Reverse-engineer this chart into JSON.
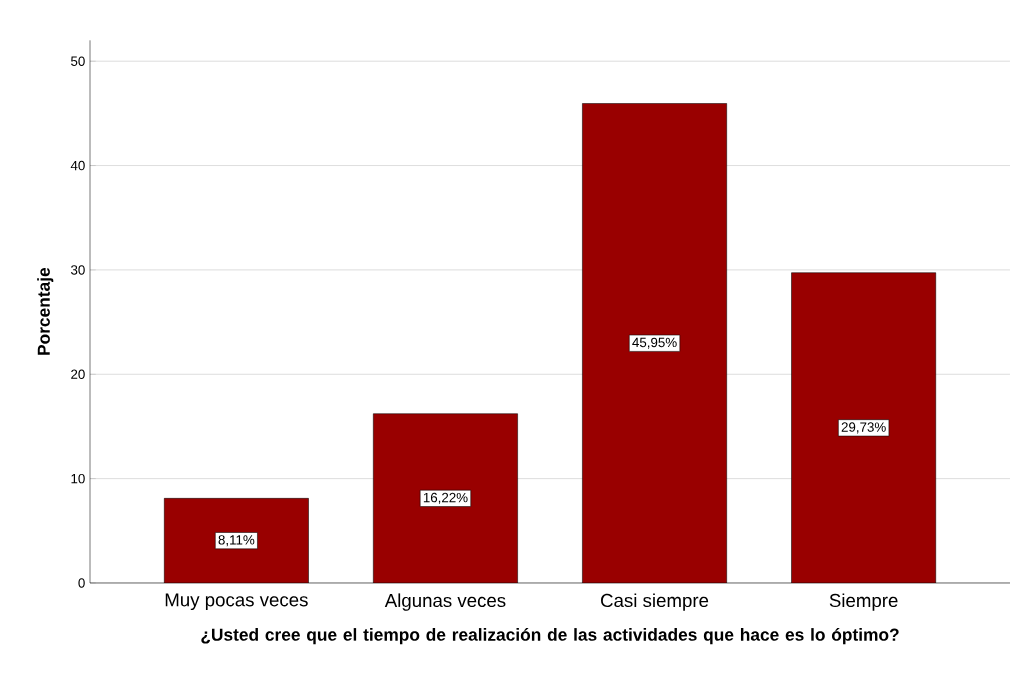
{
  "chart_data": {
    "type": "bar",
    "xlabel": "¿Usted cree que el tiempo de realización de las actividades que hace es lo óptimo?",
    "ylabel": "Porcentaje",
    "categories": [
      "Muy pocas veces",
      "Algunas veces",
      "Casi siempre",
      "Siempre"
    ],
    "values": [
      8.11,
      16.22,
      45.95,
      29.73
    ],
    "value_labels": [
      "8,11%",
      "16,22%",
      "45,95%",
      "29,73%"
    ],
    "color": "#990000",
    "ylim": [
      0,
      52
    ],
    "yticks": [
      0,
      10,
      20,
      30,
      40,
      50
    ],
    "grid": "y"
  }
}
